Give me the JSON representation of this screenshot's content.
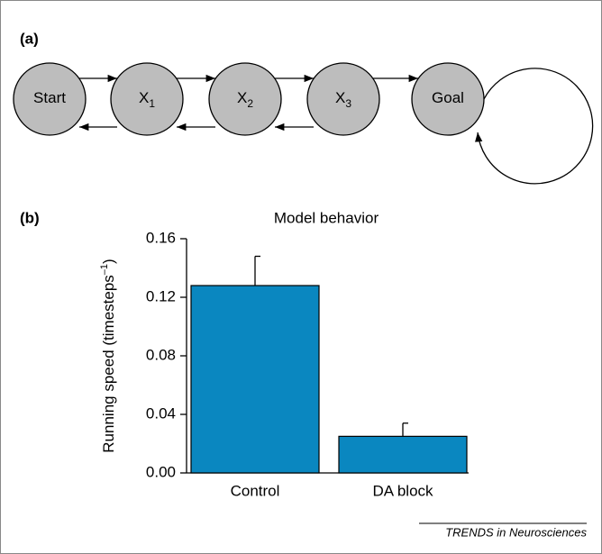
{
  "panel_a": {
    "label": "(a)",
    "nodes": [
      {
        "label": "Start"
      },
      {
        "label": "X",
        "sub": "1"
      },
      {
        "label": "X",
        "sub": "2"
      },
      {
        "label": "X",
        "sub": "3"
      },
      {
        "label": "Goal"
      }
    ]
  },
  "chart_data": {
    "type": "bar",
    "label": "(b)",
    "title": "Model behavior",
    "y_label": {
      "text": "Running speed (timesteps",
      "sup": "–1",
      "end": ")"
    },
    "categories": [
      "Control",
      "DA block"
    ],
    "values": [
      0.128,
      0.025
    ],
    "errors": [
      0.02,
      0.009
    ],
    "color": "#0a87c0",
    "ylim": [
      0,
      0.16
    ],
    "yticks": [
      {
        "value": 0,
        "label": "0.00"
      },
      0.04,
      0.08,
      0.12,
      0.16
    ]
  },
  "footer": "TRENDS in Neurosciences"
}
